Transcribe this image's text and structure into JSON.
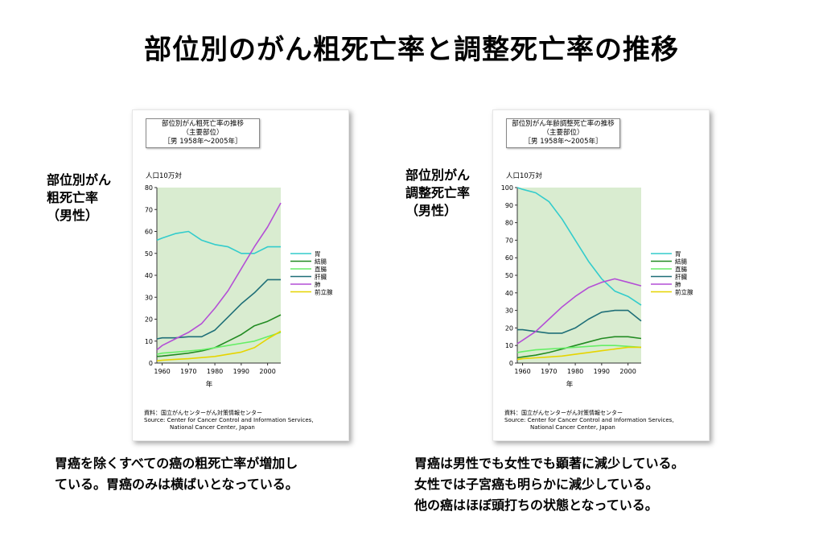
{
  "title": "部位別のがん粗死亡率と調整死亡率の推移",
  "left": {
    "side_label": [
      "部位別がん",
      "粗死亡率",
      "（男性）"
    ],
    "caption": [
      "胃癌を除くすべての癌の粗死亡率が増加し",
      "ている。胃癌のみは横ばいとなっている。"
    ]
  },
  "right": {
    "side_label": [
      "部位別がん",
      "調整死亡率",
      "（男性）"
    ],
    "caption": [
      "胃癌は男性でも女性でも顕著に減少している。",
      "女性では子宮癌も明らかに減少している。",
      "他の癌はほぼ頭打ちの状態となっている。"
    ]
  },
  "chart_data": [
    {
      "type": "line",
      "title": [
        "部位別がん粗死亡率の推移",
        "（主要部位）",
        "［男 1958年～2005年］"
      ],
      "ylabel": "人口10万対",
      "xlabel": "年",
      "xlim": [
        1958,
        2005
      ],
      "ylim": [
        0,
        80
      ],
      "yticks": [
        0,
        10,
        20,
        30,
        40,
        50,
        60,
        70,
        80
      ],
      "xticks": [
        1960,
        1970,
        1980,
        1990,
        2000
      ],
      "grid": false,
      "background": "#d9ecd0",
      "legend_placement": "right",
      "source": [
        "資料：国立がんセンターがん対策情報センター",
        "Source: Center for Cancer Control and Information Services,",
        "National Cancer Center, Japan"
      ],
      "x": [
        1958,
        1960,
        1965,
        1970,
        1975,
        1980,
        1985,
        1990,
        1995,
        2000,
        2005
      ],
      "series": [
        {
          "name": "胃",
          "color": "#33cccc",
          "values": [
            56,
            57,
            59,
            60,
            56,
            54,
            53,
            50,
            50,
            53,
            53
          ]
        },
        {
          "name": "結腸",
          "color": "#228b22",
          "values": [
            3,
            3.2,
            3.8,
            4.5,
            5.5,
            7,
            10,
            13,
            17,
            19,
            22
          ]
        },
        {
          "name": "直腸",
          "color": "#66ee66",
          "values": [
            4,
            4.5,
            5,
            5.5,
            6,
            7,
            8,
            9,
            10,
            12,
            14
          ]
        },
        {
          "name": "肝臓",
          "color": "#1f6f78",
          "values": [
            11,
            11.5,
            11.5,
            12,
            12,
            15,
            21,
            27,
            32,
            38,
            38
          ]
        },
        {
          "name": "肺",
          "color": "#b44fd6",
          "values": [
            6,
            8,
            11,
            14,
            18,
            25,
            33,
            43,
            53,
            62,
            73
          ]
        },
        {
          "name": "前立腺",
          "color": "#e6d400",
          "values": [
            1,
            1.3,
            1.7,
            2,
            2.5,
            3,
            4,
            5,
            7,
            11,
            14.5
          ]
        }
      ]
    },
    {
      "type": "line",
      "title": [
        "部位別がん年齢調整死亡率の推移",
        "（主要部位）",
        "［男 1958年～2005年］"
      ],
      "ylabel": "人口10万対",
      "xlabel": "年",
      "xlim": [
        1958,
        2005
      ],
      "ylim": [
        0,
        100
      ],
      "yticks": [
        0,
        10,
        20,
        30,
        40,
        50,
        60,
        70,
        80,
        90,
        100
      ],
      "xticks": [
        1960,
        1970,
        1980,
        1990,
        2000
      ],
      "grid": false,
      "background": "#d9ecd0",
      "legend_placement": "right",
      "source": [
        "資料：国立がんセンターがん対策情報センター",
        "Source: Center for Cancer Control and Information Services,",
        "National Cancer Center, Japan"
      ],
      "x": [
        1958,
        1960,
        1965,
        1970,
        1975,
        1980,
        1985,
        1990,
        1995,
        2000,
        2005
      ],
      "series": [
        {
          "name": "胃",
          "color": "#33cccc",
          "values": [
            100,
            99,
            97,
            92,
            82,
            70,
            58,
            48,
            41,
            38,
            33
          ]
        },
        {
          "name": "結腸",
          "color": "#228b22",
          "values": [
            3,
            3.5,
            4.5,
            6,
            8,
            10,
            12,
            14,
            15,
            15,
            14
          ]
        },
        {
          "name": "直腸",
          "color": "#66ee66",
          "values": [
            6,
            6.5,
            7.5,
            8,
            8.5,
            9,
            9.5,
            10,
            10,
            9.5,
            9
          ]
        },
        {
          "name": "肝臓",
          "color": "#1f6f78",
          "values": [
            19,
            19,
            18,
            17,
            17,
            20,
            25,
            29,
            30,
            30,
            24
          ]
        },
        {
          "name": "肺",
          "color": "#b44fd6",
          "values": [
            11,
            13,
            18,
            25,
            32,
            38,
            43,
            46,
            48,
            46,
            44
          ]
        },
        {
          "name": "前立腺",
          "color": "#e6d400",
          "values": [
            2,
            2.5,
            3,
            3.5,
            4,
            5,
            6,
            7,
            8,
            9,
            9
          ]
        }
      ]
    }
  ]
}
